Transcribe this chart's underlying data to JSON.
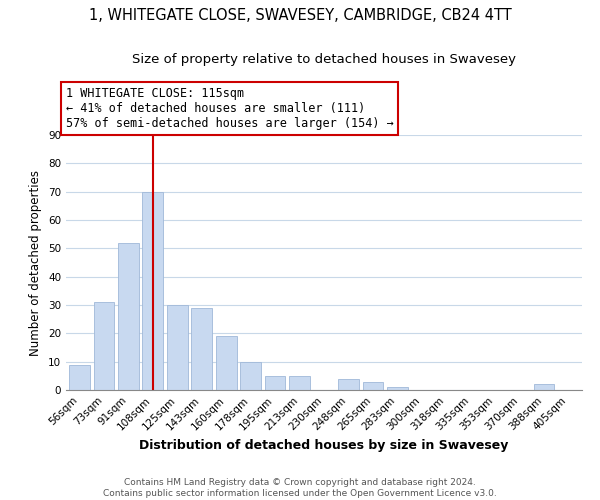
{
  "title": "1, WHITEGATE CLOSE, SWAVESEY, CAMBRIDGE, CB24 4TT",
  "subtitle": "Size of property relative to detached houses in Swavesey",
  "xlabel": "Distribution of detached houses by size in Swavesey",
  "ylabel": "Number of detached properties",
  "bar_labels": [
    "56sqm",
    "73sqm",
    "91sqm",
    "108sqm",
    "125sqm",
    "143sqm",
    "160sqm",
    "178sqm",
    "195sqm",
    "213sqm",
    "230sqm",
    "248sqm",
    "265sqm",
    "283sqm",
    "300sqm",
    "318sqm",
    "335sqm",
    "353sqm",
    "370sqm",
    "388sqm",
    "405sqm"
  ],
  "bar_values": [
    9,
    31,
    52,
    70,
    30,
    29,
    19,
    10,
    5,
    5,
    0,
    4,
    3,
    1,
    0,
    0,
    0,
    0,
    0,
    2,
    0
  ],
  "bar_color": "#c8d9f0",
  "bar_edge_color": "#a0b8d8",
  "vline_x": 3.0,
  "vline_color": "#cc0000",
  "ylim": [
    0,
    90
  ],
  "yticks": [
    0,
    10,
    20,
    30,
    40,
    50,
    60,
    70,
    80,
    90
  ],
  "annotation_line1": "1 WHITEGATE CLOSE: 115sqm",
  "annotation_line2": "← 41% of detached houses are smaller (111)",
  "annotation_line3": "57% of semi-detached houses are larger (154) →",
  "footer_line1": "Contains HM Land Registry data © Crown copyright and database right 2024.",
  "footer_line2": "Contains public sector information licensed under the Open Government Licence v3.0.",
  "background_color": "#ffffff",
  "grid_color": "#c8d8e8",
  "title_fontsize": 10.5,
  "subtitle_fontsize": 9.5,
  "xlabel_fontsize": 9,
  "ylabel_fontsize": 8.5,
  "tick_fontsize": 7.5,
  "annotation_fontsize": 8.5,
  "footer_fontsize": 6.5
}
